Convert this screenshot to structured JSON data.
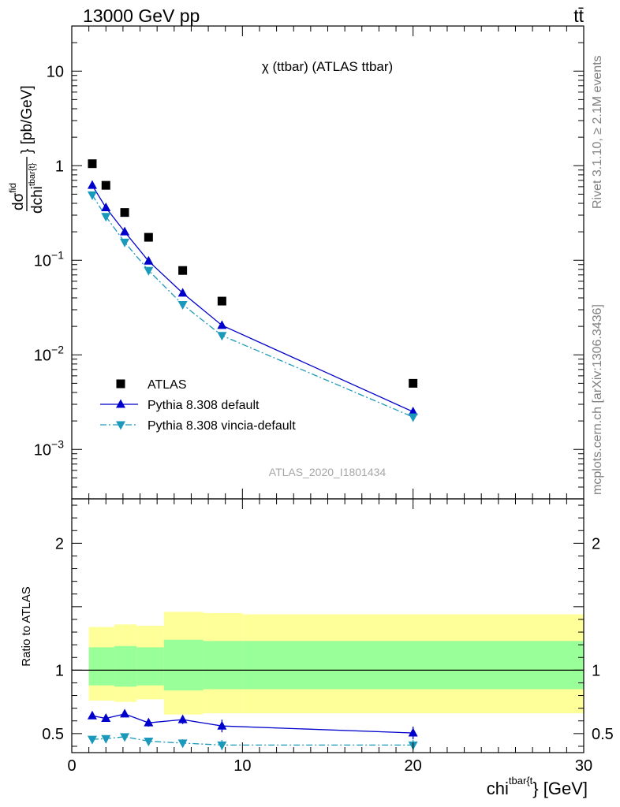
{
  "header": {
    "left": "13000 GeV pp",
    "right": "tt̄"
  },
  "side_labels": {
    "rivet": "Rivet 3.1.10, ≥ 2.1M events",
    "mcplots": "mcplots.cern.ch [arXiv:1306.3436]"
  },
  "analysis_id": "ATLAS_2020_I1801434",
  "chart_data": [
    {
      "type": "scatter",
      "title": "χ (ttbar) (ATLAS ttbar)",
      "ylabel": "dσ^fid/dchi^tbar{t} [pb/GeV]",
      "y_log": true,
      "xlim": [
        0,
        30
      ],
      "ylim": [
        0.0003,
        30
      ],
      "legend_position": "lower-left",
      "yticks": [
        {
          "v": 10,
          "base": "10",
          "exp": ""
        },
        {
          "v": 1,
          "base": "1",
          "exp": ""
        },
        {
          "v": 0.1,
          "base": "10",
          "exp": "−1"
        },
        {
          "v": 0.01,
          "base": "10",
          "exp": "−2"
        },
        {
          "v": 0.001,
          "base": "10",
          "exp": "−3"
        }
      ],
      "series": [
        {
          "name": "ATLAS",
          "color": "#000000",
          "marker": "square",
          "points": [
            {
              "x": 1.2,
              "y": 1.05
            },
            {
              "x": 2.0,
              "y": 0.62
            },
            {
              "x": 3.1,
              "y": 0.32
            },
            {
              "x": 4.5,
              "y": 0.175
            },
            {
              "x": 6.5,
              "y": 0.078
            },
            {
              "x": 8.8,
              "y": 0.037
            },
            {
              "x": 20.0,
              "y": 0.005
            }
          ]
        },
        {
          "name": "Pythia 8.308 default",
          "color": "#0000cc",
          "marker": "triangle-up",
          "line": "solid",
          "points": [
            {
              "x": 1.2,
              "y": 0.62
            },
            {
              "x": 2.0,
              "y": 0.36
            },
            {
              "x": 3.1,
              "y": 0.2
            },
            {
              "x": 4.5,
              "y": 0.098
            },
            {
              "x": 6.5,
              "y": 0.045
            },
            {
              "x": 8.8,
              "y": 0.0205
            },
            {
              "x": 20.0,
              "y": 0.0025
            }
          ]
        },
        {
          "name": "Pythia 8.308 vincia-default",
          "color": "#1a99bb",
          "marker": "triangle-down",
          "line": "dashdot",
          "points": [
            {
              "x": 1.2,
              "y": 0.49
            },
            {
              "x": 2.0,
              "y": 0.29
            },
            {
              "x": 3.1,
              "y": 0.155
            },
            {
              "x": 4.5,
              "y": 0.078
            },
            {
              "x": 6.5,
              "y": 0.034
            },
            {
              "x": 8.8,
              "y": 0.016
            },
            {
              "x": 20.0,
              "y": 0.0022
            }
          ]
        }
      ]
    },
    {
      "type": "scatter",
      "ylabel": "Ratio to ATLAS",
      "xlabel": "chi^tbar{t} [GeV]",
      "xlim": [
        0,
        30
      ],
      "ylim": [
        0.35,
        2.35
      ],
      "xticks": [
        0,
        10,
        20,
        30
      ],
      "yticks": [
        0.5,
        1,
        2
      ],
      "reference_line": 1,
      "bands": [
        {
          "color": "#ffff99",
          "bins": [
            {
              "x0": 1.0,
              "x1": 2.5,
              "lo": 0.76,
              "hi": 1.34
            },
            {
              "x0": 2.5,
              "x1": 3.8,
              "lo": 0.75,
              "hi": 1.36
            },
            {
              "x0": 3.8,
              "x1": 5.4,
              "lo": 0.77,
              "hi": 1.35
            },
            {
              "x0": 5.4,
              "x1": 7.7,
              "lo": 0.65,
              "hi": 1.46
            },
            {
              "x0": 7.7,
              "x1": 10.0,
              "lo": 0.66,
              "hi": 1.45
            },
            {
              "x0": 10.0,
              "x1": 30.0,
              "lo": 0.66,
              "hi": 1.44
            }
          ]
        },
        {
          "color": "#99ff99",
          "bins": [
            {
              "x0": 1.0,
              "x1": 2.5,
              "lo": 0.88,
              "hi": 1.18
            },
            {
              "x0": 2.5,
              "x1": 3.8,
              "lo": 0.87,
              "hi": 1.19
            },
            {
              "x0": 3.8,
              "x1": 5.4,
              "lo": 0.88,
              "hi": 1.18
            },
            {
              "x0": 5.4,
              "x1": 7.7,
              "lo": 0.84,
              "hi": 1.24
            },
            {
              "x0": 7.7,
              "x1": 10.0,
              "lo": 0.85,
              "hi": 1.23
            },
            {
              "x0": 10.0,
              "x1": 30.0,
              "lo": 0.85,
              "hi": 1.23
            }
          ]
        }
      ],
      "series": [
        {
          "name": "Pythia 8.308 default",
          "color": "#0000cc",
          "marker": "triangle-up",
          "line": "solid",
          "points": [
            {
              "x": 1.2,
              "y": 0.64,
              "err": 0.02
            },
            {
              "x": 2.0,
              "y": 0.62,
              "err": 0.02
            },
            {
              "x": 3.1,
              "y": 0.655,
              "err": 0.02
            },
            {
              "x": 4.5,
              "y": 0.585,
              "err": 0.03
            },
            {
              "x": 6.5,
              "y": 0.61,
              "err": 0.035
            },
            {
              "x": 8.8,
              "y": 0.56,
              "err": 0.05
            },
            {
              "x": 20.0,
              "y": 0.505,
              "err": 0.05
            }
          ]
        },
        {
          "name": "Pythia 8.308 vincia-default",
          "color": "#1a99bb",
          "marker": "triangle-down",
          "line": "dashdot",
          "points": [
            {
              "x": 1.2,
              "y": 0.455,
              "err": 0.015
            },
            {
              "x": 2.0,
              "y": 0.46,
              "err": 0.015
            },
            {
              "x": 3.1,
              "y": 0.475,
              "err": 0.02
            },
            {
              "x": 4.5,
              "y": 0.44,
              "err": 0.025
            },
            {
              "x": 6.5,
              "y": 0.425,
              "err": 0.03
            },
            {
              "x": 8.8,
              "y": 0.41,
              "err": 0.04
            },
            {
              "x": 20.0,
              "y": 0.41,
              "err": 0.04
            }
          ]
        }
      ]
    }
  ]
}
